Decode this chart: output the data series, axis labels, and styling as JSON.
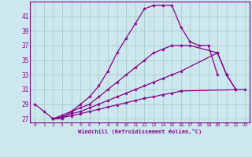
{
  "xlabel": "Windchill (Refroidissement éolien,°C)",
  "background_color": "#cce8ee",
  "grid_color": "#aacccc",
  "line_color": "#880088",
  "xlim": [
    -0.5,
    23.5
  ],
  "ylim": [
    26.5,
    43
  ],
  "yticks": [
    27,
    29,
    31,
    33,
    35,
    37,
    39,
    41
  ],
  "xticks": [
    0,
    1,
    2,
    3,
    4,
    5,
    6,
    7,
    8,
    9,
    10,
    11,
    12,
    13,
    14,
    15,
    16,
    17,
    18,
    19,
    20,
    21,
    22,
    23
  ],
  "series": [
    {
      "x": [
        0,
        1,
        2,
        3,
        4,
        5,
        6,
        7,
        8,
        9,
        10,
        11,
        12,
        13,
        14,
        15,
        16,
        17,
        18,
        19,
        20
      ],
      "y": [
        29,
        28,
        27,
        27,
        28,
        29,
        30,
        31.5,
        33.5,
        36,
        38,
        40,
        42,
        42.5,
        42.5,
        42.5,
        39.5,
        37.5,
        37,
        37,
        33
      ]
    },
    {
      "x": [
        2,
        3,
        4,
        5,
        6,
        7,
        8,
        9,
        10,
        11,
        12,
        13,
        14,
        15,
        16,
        17,
        20,
        21,
        22
      ],
      "y": [
        27,
        27.5,
        28,
        28.5,
        29,
        30,
        31,
        32,
        33,
        34,
        35,
        36,
        36.5,
        37,
        37,
        37,
        36,
        33,
        31
      ]
    },
    {
      "x": [
        2,
        3,
        4,
        5,
        6,
        7,
        8,
        9,
        10,
        11,
        12,
        13,
        14,
        15,
        16,
        20,
        21,
        22
      ],
      "y": [
        27,
        27.3,
        27.7,
        28,
        28.5,
        29,
        29.5,
        30,
        30.5,
        31,
        31.5,
        32,
        32.5,
        33,
        33.5,
        36,
        33,
        31
      ]
    },
    {
      "x": [
        2,
        3,
        4,
        5,
        6,
        7,
        8,
        9,
        10,
        11,
        12,
        13,
        14,
        15,
        16,
        23
      ],
      "y": [
        27,
        27.2,
        27.4,
        27.7,
        28,
        28.3,
        28.6,
        28.9,
        29.2,
        29.5,
        29.8,
        30,
        30.3,
        30.5,
        30.8,
        31
      ]
    }
  ]
}
